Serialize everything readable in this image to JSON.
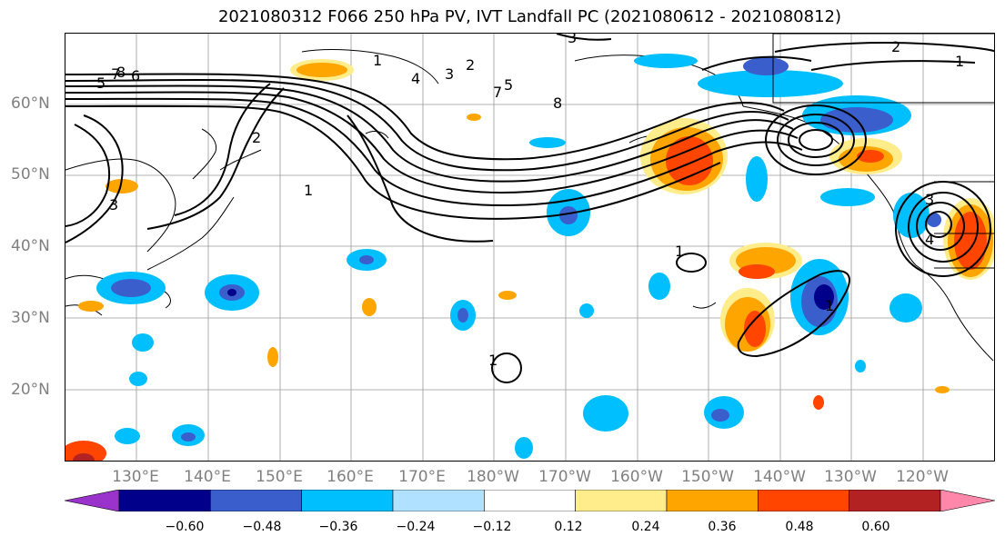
{
  "title": "2021080312 F066 250 hPa PV, IVT Landfall PC (2021080612 - 2021080812)",
  "lat_labels": [
    "60°N",
    "50°N",
    "40°N",
    "30°N",
    "20°N"
  ],
  "lon_labels": [
    "130°E",
    "140°E",
    "150°E",
    "160°E",
    "170°E",
    "180°W",
    "170°W",
    "160°W",
    "150°W",
    "140°W",
    "130°W",
    "120°W"
  ],
  "contour_labels": [
    "1",
    "2",
    "3",
    "4",
    "5",
    "6",
    "7",
    "8"
  ],
  "colorbar": {
    "ticks": [
      "−0.60",
      "−0.48",
      "−0.36",
      "−0.24",
      "−0.12",
      "0.12",
      "0.24",
      "0.36",
      "0.48",
      "0.60"
    ],
    "colors": [
      "#9933cc",
      "#00008b",
      "#3a5fcd",
      "#00bfff",
      "#b0e2ff",
      "#ffffff",
      "#ffec8b",
      "#ffa500",
      "#ff4500",
      "#b22222",
      "#ff88aa"
    ]
  }
}
